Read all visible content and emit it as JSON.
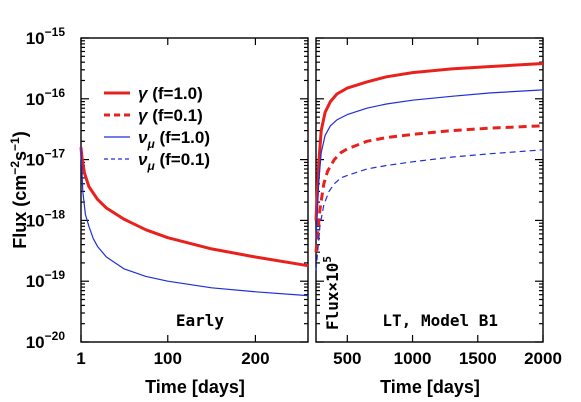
{
  "chart_data": [
    {
      "type": "line",
      "panel_label": "Early",
      "xlabel": "Time [days]",
      "ylabel_main": "Flux (cm",
      "ylabel_sup1": "−2",
      "ylabel_mid": "s",
      "ylabel_sup2": "−1",
      "ylabel_end": ")",
      "xlim": [
        1,
        260
      ],
      "xticks": [
        1,
        100,
        200
      ],
      "yscale": "log",
      "ylim": [
        1e-20,
        1e-15
      ],
      "yticks": [
        {
          "value": 1e-15,
          "base": "10",
          "exp": "−15"
        },
        {
          "value": 1e-16,
          "base": "10",
          "exp": "−16"
        },
        {
          "value": 1e-17,
          "base": "10",
          "exp": "−17"
        },
        {
          "value": 1e-18,
          "base": "10",
          "exp": "−18"
        },
        {
          "value": 1e-19,
          "base": "10",
          "exp": "−19"
        },
        {
          "value": 1e-20,
          "base": "10",
          "exp": "−20"
        }
      ],
      "series": [
        {
          "name": "γ (f=1.0)",
          "color": "#e8211d",
          "style": "solid",
          "width": 3,
          "x": [
            1,
            2,
            5,
            10,
            20,
            30,
            50,
            75,
            100,
            150,
            200,
            260
          ],
          "y": [
            1.6e-17,
            1.1e-17,
            6e-18,
            3.6e-18,
            2.2e-18,
            1.6e-18,
            1.05e-18,
            7e-19,
            5.2e-19,
            3.4e-19,
            2.5e-19,
            1.8e-19
          ]
        },
        {
          "name": "νμ (f=1.0)",
          "color": "#1f2fd6",
          "style": "solid",
          "width": 1.2,
          "x": [
            1,
            3,
            6,
            10,
            15,
            20,
            30,
            50,
            75,
            100,
            150,
            200,
            260
          ],
          "y": [
            1.6e-17,
            3e-18,
            1.25e-18,
            8e-19,
            5e-19,
            3.7e-19,
            2.5e-19,
            1.6e-19,
            1.2e-19,
            1e-19,
            7.8e-20,
            6.7e-20,
            5.8e-20
          ]
        }
      ]
    },
    {
      "type": "line",
      "panel_label": "LT, Model B1",
      "side_label": "Flux×10",
      "side_label_sup": "5",
      "xlabel": "Time [days]",
      "xlim": [
        260,
        2000
      ],
      "xticks": [
        500,
        1000,
        1500,
        2000
      ],
      "yscale": "log",
      "ylim": [
        1e-20,
        1e-15
      ],
      "series": [
        {
          "name": "γ (f=1.0)",
          "color": "#e8211d",
          "style": "solid",
          "width": 3,
          "x": [
            260,
            280,
            300,
            330,
            370,
            420,
            500,
            650,
            800,
            1000,
            1300,
            1600,
            2000
          ],
          "y": [
            1e-18,
            8e-18,
            3e-17,
            6e-17,
            9e-17,
            1.2e-16,
            1.5e-16,
            1.9e-16,
            2.3e-16,
            2.7e-16,
            3.1e-16,
            3.4e-16,
            3.8e-16
          ]
        },
        {
          "name": "γ (f=0.1)",
          "color": "#e8211d",
          "style": "dashed",
          "width": 3,
          "x": [
            260,
            290,
            320,
            350,
            400,
            450,
            500,
            650,
            800,
            1000,
            1300,
            1600,
            2000
          ],
          "y": [
            3e-19,
            1.5e-18,
            4e-18,
            6.5e-18,
            1e-17,
            1.3e-17,
            1.5e-17,
            2e-17,
            2.3e-17,
            2.6e-17,
            3e-17,
            3.3e-17,
            3.6e-17
          ]
        },
        {
          "name": "νμ (f=1.0)",
          "color": "#1f2fd6",
          "style": "solid",
          "width": 1.2,
          "x": [
            260,
            280,
            300,
            330,
            370,
            420,
            500,
            650,
            800,
            1000,
            1300,
            1600,
            2000
          ],
          "y": [
            5e-19,
            4e-18,
            1.3e-17,
            2.5e-17,
            3.6e-17,
            4.5e-17,
            5.5e-17,
            7e-17,
            8.2e-17,
            9.5e-17,
            1.1e-16,
            1.25e-16,
            1.4e-16
          ]
        },
        {
          "name": "νμ (f=0.1)",
          "color": "#1f2fd6",
          "style": "dashed",
          "width": 1.2,
          "x": [
            260,
            290,
            320,
            360,
            400,
            450,
            500,
            650,
            800,
            1000,
            1300,
            1600,
            2000
          ],
          "y": [
            1.5e-19,
            8e-19,
            1.8e-18,
            3e-18,
            4e-18,
            5e-18,
            5.5e-18,
            7e-18,
            8e-18,
            9.2e-18,
            1.1e-17,
            1.25e-17,
            1.45e-17
          ]
        }
      ]
    }
  ],
  "legend": {
    "placement": "top-left of left panel",
    "entries": [
      {
        "symbol": "γ",
        "sub": "",
        "suffix": " (f=1.0)",
        "color": "#e8211d",
        "style": "solid",
        "width": 3
      },
      {
        "symbol": "γ",
        "sub": "",
        "suffix": " (f=0.1)",
        "color": "#e8211d",
        "style": "dashed",
        "width": 3
      },
      {
        "symbol": "ν",
        "sub": "μ",
        "suffix": " (f=1.0)",
        "color": "#1f2fd6",
        "style": "solid",
        "width": 1.2
      },
      {
        "symbol": "ν",
        "sub": "μ",
        "suffix": " (f=0.1)",
        "color": "#1f2fd6",
        "style": "dashed",
        "width": 1.2
      }
    ]
  }
}
